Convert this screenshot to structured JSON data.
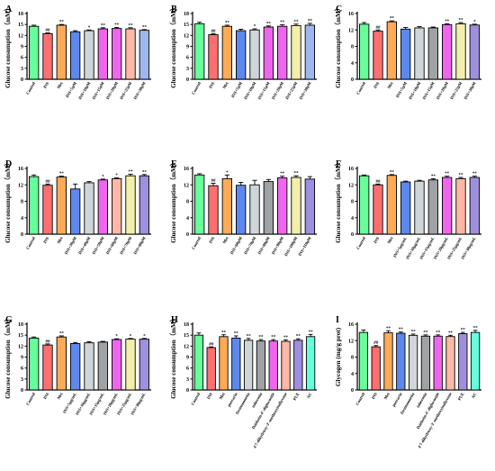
{
  "palette": [
    "#66ff99",
    "#ff6f6f",
    "#ffaa55",
    "#5d88ee",
    "#cfd6d9",
    "#9fa3a6",
    "#ee66ee",
    "#ffb8a6",
    "#f3eeaa",
    "#9f8fdf",
    "#9fb7ef",
    "#66ffdd"
  ],
  "chart_data": [
    {
      "type": "bar",
      "panel": "A",
      "ylabel": "Glucose consumption（mM）",
      "ylim": [
        0,
        18
      ],
      "yticks": [
        0,
        3,
        6,
        9,
        12,
        15,
        18
      ],
      "categories": [
        "Control",
        "INS",
        "Met",
        "INS+5μM",
        "INS+10μM",
        "INS+15μM",
        "INS+20μM",
        "INS+25μM",
        "INS+30μM"
      ],
      "values": [
        14.5,
        12.5,
        14.8,
        13.0,
        13.3,
        13.8,
        13.9,
        13.8,
        13.4
      ],
      "errors": [
        0.3,
        0.2,
        0.2,
        0.3,
        0.2,
        0.3,
        0.3,
        0.3,
        0.2
      ],
      "sig": [
        "",
        "##",
        "**",
        "",
        "*",
        "**",
        "**",
        "**",
        "**"
      ],
      "colors": [
        "#66ff99",
        "#ff6f6f",
        "#ffaa55",
        "#5d88ee",
        "#cfd6d9",
        "#ee66ee",
        "#ee66ee",
        "#ffb8a6",
        "#9fb7ef"
      ]
    },
    {
      "type": "bar",
      "panel": "B",
      "ylabel": "Glucose consumption（mM）",
      "ylim": [
        0,
        18
      ],
      "yticks": [
        0,
        3,
        6,
        9,
        12,
        15,
        18
      ],
      "categories": [
        "Control",
        "INS",
        "Met",
        "INS+5μM",
        "INS+10μM",
        "INS+15μM",
        "INS+20μM",
        "INS+25μM",
        "INS+30μM"
      ],
      "values": [
        15.2,
        12.2,
        14.5,
        13.3,
        13.5,
        14.3,
        14.5,
        14.7,
        14.8
      ],
      "errors": [
        0.4,
        0.3,
        0.3,
        0.4,
        0.3,
        0.3,
        0.4,
        0.4,
        0.5
      ],
      "sig": [
        "",
        "##",
        "**",
        "",
        "*",
        "**",
        "**",
        "**",
        "**"
      ],
      "colors": [
        "#66ff99",
        "#ff6f6f",
        "#ffaa55",
        "#5d88ee",
        "#cfd6d9",
        "#ee66ee",
        "#ee66ee",
        "#f3eeaa",
        "#9fb7ef"
      ]
    },
    {
      "type": "bar",
      "panel": "C",
      "ylabel": "Glucose consumption（mM）",
      "ylim": [
        0,
        16
      ],
      "yticks": [
        0,
        4,
        8,
        12,
        16
      ],
      "categories": [
        "Control",
        "INS",
        "Met",
        "INS+5μM",
        "INS+10μM",
        "INS+15μM",
        "INS+20μM",
        "INS+25μM",
        "INS+30μM"
      ],
      "values": [
        13.4,
        11.7,
        14.0,
        12.2,
        12.5,
        12.5,
        13.3,
        13.5,
        13.2
      ],
      "errors": [
        0.4,
        0.3,
        0.2,
        0.4,
        0.3,
        0.2,
        0.2,
        0.3,
        0.2
      ],
      "sig": [
        "",
        "##",
        "**",
        "",
        "",
        "",
        "**",
        "**",
        "*"
      ],
      "colors": [
        "#66ff99",
        "#ff6f6f",
        "#ffaa55",
        "#5d88ee",
        "#cfd6d9",
        "#9fa3a6",
        "#ee66ee",
        "#f3eeaa",
        "#9f8fdf"
      ]
    },
    {
      "type": "bar",
      "panel": "D",
      "ylabel": "Glucose consumption（mM）",
      "ylim": [
        0,
        16
      ],
      "yticks": [
        0,
        4,
        8,
        12,
        16
      ],
      "categories": [
        "Control",
        "INS",
        "Met",
        "INS+30μM",
        "INS+40μM",
        "INS+50μM",
        "INS+60μM",
        "INS+70μM",
        "INS+80μM"
      ],
      "values": [
        14.0,
        11.9,
        13.9,
        11.0,
        12.5,
        13.2,
        13.5,
        14.2,
        14.2
      ],
      "errors": [
        0.4,
        0.3,
        0.2,
        1.2,
        0.3,
        0.2,
        0.2,
        0.4,
        0.3
      ],
      "sig": [
        "",
        "##",
        "**",
        "",
        "",
        "*",
        "*",
        "**",
        "**"
      ],
      "colors": [
        "#66ff99",
        "#ff6f6f",
        "#ffaa55",
        "#5d88ee",
        "#cfd6d9",
        "#ee66ee",
        "#ffb8a6",
        "#f3eeaa",
        "#9f8fdf"
      ]
    },
    {
      "type": "bar",
      "panel": "E",
      "ylabel": "Glucose consumption（mM）",
      "ylim": [
        0,
        16
      ],
      "yticks": [
        0,
        4,
        8,
        12,
        16
      ],
      "categories": [
        "Control",
        "INS",
        "Met",
        "INS+60μM",
        "INS+70μM",
        "INS+80μM",
        "INS+90μM",
        "INS+100μM",
        "INS+110μM"
      ],
      "values": [
        14.4,
        11.8,
        13.5,
        11.9,
        12.0,
        12.8,
        13.7,
        13.8,
        13.4
      ],
      "errors": [
        0.3,
        0.6,
        0.9,
        0.7,
        1.1,
        0.5,
        0.4,
        0.4,
        0.6
      ],
      "sig": [
        "",
        "##",
        "*",
        "",
        "",
        "",
        "**",
        "**",
        ""
      ],
      "colors": [
        "#66ff99",
        "#ff6f6f",
        "#ffaa55",
        "#5d88ee",
        "#cfd6d9",
        "#9fa3a6",
        "#ee66ee",
        "#f3eeaa",
        "#9f8fdf"
      ]
    },
    {
      "type": "bar",
      "panel": "F",
      "ylabel": "Glucose consumption（mM）",
      "ylim": [
        0,
        16
      ],
      "yticks": [
        0,
        4,
        8,
        12,
        16
      ],
      "categories": [
        "Control",
        "INS",
        "Met",
        "INS+5μg/mL",
        "INS+10μg/mL",
        "INS+15μg/mL",
        "INS+20μg/mL",
        "INS+25μg/mL",
        "INS+30μg/mL"
      ],
      "values": [
        14.2,
        12.0,
        14.3,
        12.7,
        12.9,
        13.2,
        13.8,
        13.5,
        13.8
      ],
      "errors": [
        0.2,
        0.2,
        0.2,
        0.2,
        0.2,
        0.3,
        0.3,
        0.3,
        0.3
      ],
      "sig": [
        "",
        "##",
        "**",
        "",
        "",
        "**",
        "**",
        "**",
        "**"
      ],
      "colors": [
        "#66ff99",
        "#ff6f6f",
        "#ffaa55",
        "#5d88ee",
        "#cfd6d9",
        "#9fa3a6",
        "#ee66ee",
        "#ffb8a6",
        "#9f8fdf"
      ]
    },
    {
      "type": "bar",
      "panel": "G",
      "ylabel": "Glucose consumption（mM）",
      "ylim": [
        0,
        18
      ],
      "yticks": [
        0,
        3,
        6,
        9,
        12,
        15,
        18
      ],
      "categories": [
        "Control",
        "INS",
        "Met",
        "INS+5μg/mL",
        "INS+10μg/mL",
        "INS+15μg/mL",
        "INS+20μg/mL",
        "INS+25μg/mL",
        "INS+30μg/mL"
      ],
      "values": [
        14.2,
        12.3,
        14.5,
        12.7,
        12.9,
        13.1,
        13.8,
        13.9,
        13.9
      ],
      "errors": [
        0.3,
        0.3,
        0.3,
        0.3,
        0.3,
        0.2,
        0.2,
        0.2,
        0.2
      ],
      "sig": [
        "",
        "##",
        "**",
        "",
        "",
        "",
        "*",
        "*",
        "*"
      ],
      "colors": [
        "#66ff99",
        "#ff6f6f",
        "#ffaa55",
        "#5d88ee",
        "#cfd6d9",
        "#9fa3a6",
        "#ee66ee",
        "#f3eeaa",
        "#9f8fdf"
      ]
    },
    {
      "type": "bar",
      "panel": "H",
      "ylabel": "Glucose consumption（mM）",
      "ylim": [
        0,
        18
      ],
      "yticks": [
        0,
        3,
        6,
        9,
        12,
        15,
        18
      ],
      "categories": [
        "Control",
        "INS",
        "Met",
        "puerarin",
        "formononetin",
        "tuberosin",
        "Daidzein-4'-diglucoside",
        "4'7-dihydroxy-3'-methoxyisoflavone",
        "PUE",
        "AC"
      ],
      "values": [
        15.0,
        11.6,
        14.6,
        14.2,
        13.6,
        13.4,
        13.4,
        13.3,
        13.6,
        14.6
      ],
      "errors": [
        0.6,
        0.2,
        0.5,
        0.6,
        0.5,
        0.4,
        0.4,
        0.4,
        0.4,
        0.6
      ],
      "sig": [
        "",
        "##",
        "**",
        "**",
        "**",
        "**",
        "**",
        "**",
        "**",
        "**"
      ],
      "colors": [
        "#66ff99",
        "#ff6f6f",
        "#ffaa55",
        "#5d88ee",
        "#cfd6d9",
        "#9fa3a6",
        "#ee66ee",
        "#ffb8a6",
        "#9f8fdf",
        "#66ffdd"
      ]
    },
    {
      "type": "bar",
      "panel": "I",
      "ylabel": "Glycogen (mg/g prot)",
      "ylim": [
        0,
        16
      ],
      "yticks": [
        0,
        4,
        8,
        12,
        16
      ],
      "categories": [
        "Control",
        "INS",
        "Met",
        "puerarin",
        "formononetin",
        "tuberosin",
        "Daidzein-4'-diglucoside",
        "4'7-dihydroxy-3'-methoxyisoflavone",
        "PUE",
        "AC"
      ],
      "values": [
        14.0,
        10.5,
        13.9,
        13.8,
        13.3,
        13.1,
        13.1,
        13.0,
        13.7,
        14.0
      ],
      "errors": [
        0.6,
        0.3,
        0.5,
        0.3,
        0.3,
        0.3,
        0.3,
        0.3,
        0.3,
        0.5
      ],
      "sig": [
        "",
        "##",
        "**",
        "**",
        "**",
        "**",
        "**",
        "**",
        "**",
        "**"
      ],
      "colors": [
        "#66ff99",
        "#ff6f6f",
        "#ffaa55",
        "#5d88ee",
        "#cfd6d9",
        "#9fa3a6",
        "#ee66ee",
        "#ffb8a6",
        "#9f8fdf",
        "#66ffdd"
      ]
    }
  ]
}
